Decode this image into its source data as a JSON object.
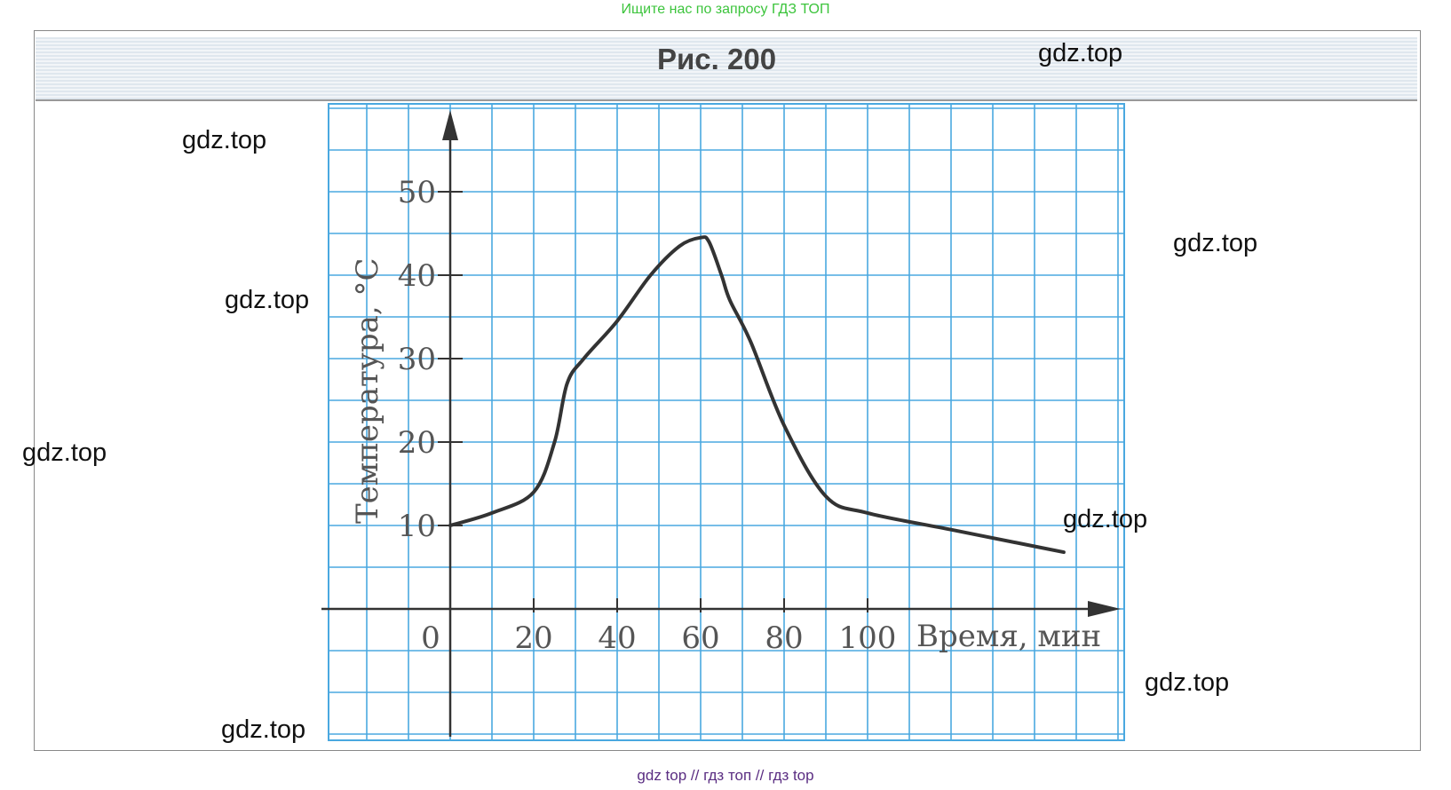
{
  "top_note": "Ищите нас по запросу ГДЗ ТОП",
  "figure_title": "Рис. 200",
  "watermark": "gdz.top",
  "footer": "gdz top  //  гдз топ  //  гдз top",
  "chart_data": {
    "type": "line",
    "title": "Рис. 200",
    "xlabel": "Время, мин",
    "ylabel": "Температура, °C",
    "xlim": [
      -30,
      160
    ],
    "ylim": [
      -15,
      60
    ],
    "x_ticks": [
      0,
      20,
      40,
      60,
      80,
      100
    ],
    "x_tick_labels": [
      "0",
      "20",
      "40",
      "60",
      "80",
      "100"
    ],
    "y_ticks": [
      10,
      20,
      30,
      40,
      50
    ],
    "y_tick_labels": [
      "10",
      "20",
      "30",
      "40",
      "50"
    ],
    "grid": true,
    "grid_color": "#4aa8e0",
    "series": [
      {
        "name": "temperature",
        "x": [
          0,
          10,
          20,
          25,
          28,
          32,
          40,
          48,
          55,
          60,
          62,
          65,
          67,
          72,
          80,
          90,
          100,
          120,
          140,
          147
        ],
        "y": [
          10,
          11.5,
          14,
          20,
          27,
          30,
          34.5,
          40,
          43.5,
          44.5,
          44,
          40,
          37,
          32,
          22,
          13.5,
          11.5,
          9.5,
          7.5,
          6.8
        ]
      }
    ]
  }
}
